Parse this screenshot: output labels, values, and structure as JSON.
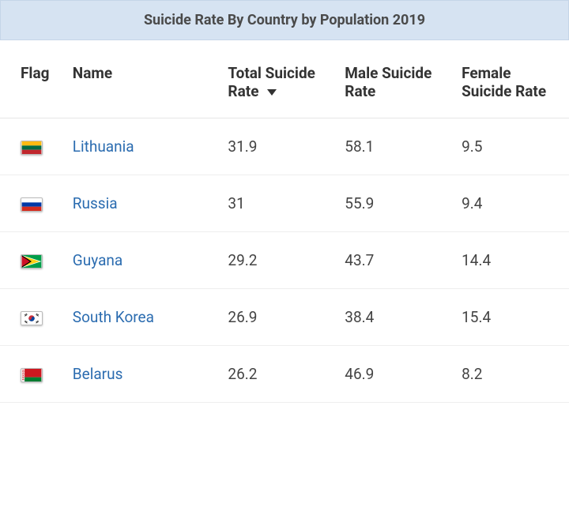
{
  "title": "Suicide Rate By Country by Population 2019",
  "colors": {
    "title_bg": "#d6e3f2",
    "title_border": "#c5d5e8",
    "title_text": "#4a4a4a",
    "link": "#2b6cb0",
    "body_text": "#444444",
    "row_border": "#eeeeee",
    "header_border": "#e5e5e5"
  },
  "columns": {
    "flag": "Flag",
    "name": "Name",
    "total": "Total Suicide Rate",
    "male": "Male Suicide Rate",
    "female": "Female Suicide Rate"
  },
  "sort": {
    "column": "total",
    "direction": "desc"
  },
  "rows": [
    {
      "country": "Lithuania",
      "total": "31.9",
      "male": "58.1",
      "female": "9.5",
      "flag": {
        "name": "lithuania",
        "stripes": [
          "#fdb913",
          "#006a44",
          "#c1272d"
        ],
        "orientation": "horizontal"
      }
    },
    {
      "country": "Russia",
      "total": "31",
      "male": "55.9",
      "female": "9.4",
      "flag": {
        "name": "russia",
        "stripes": [
          "#ffffff",
          "#0039a6",
          "#d52b1e"
        ],
        "orientation": "horizontal"
      }
    },
    {
      "country": "Guyana",
      "total": "29.2",
      "male": "43.7",
      "female": "14.4",
      "flag": {
        "name": "guyana",
        "bg": "#009e49",
        "triangle1_fill": "#fcd116",
        "triangle1_border": "#ffffff",
        "triangle2_fill": "#ce1126",
        "triangle2_border": "#000000"
      }
    },
    {
      "country": "South Korea",
      "total": "26.9",
      "male": "38.4",
      "female": "15.4",
      "flag": {
        "name": "south-korea",
        "bg": "#ffffff",
        "circle_top": "#cd2e3a",
        "circle_bottom": "#0047a0",
        "bars": "#000000"
      }
    },
    {
      "country": "Belarus",
      "total": "26.2",
      "male": "46.9",
      "female": "8.2",
      "flag": {
        "name": "belarus",
        "top": "#ce1720",
        "bottom": "#007c30",
        "ornament_bg": "#ffffff",
        "ornament_fg": "#ce1720"
      }
    }
  ]
}
